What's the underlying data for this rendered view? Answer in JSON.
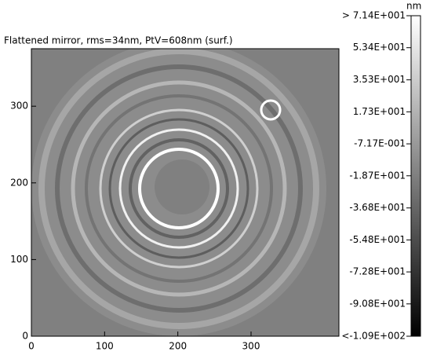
{
  "chart_data": {
    "type": "heatmap",
    "title": "Flattened mirror, rms=34nm, PtV=608nm (surf.)",
    "colorbar_unit": "nm",
    "xlim": [
      0,
      420
    ],
    "xticks": [
      0,
      100,
      200,
      300
    ],
    "ylim": [
      0,
      375
    ],
    "yticks": [
      0,
      100,
      200,
      300
    ],
    "colorbar_lim": [
      -109,
      71.4
    ],
    "colorbar_ticks": [
      {
        "value": 71.4,
        "label": "> 7.14E+001"
      },
      {
        "value": 53.4,
        "label": "5.34E+001"
      },
      {
        "value": 35.3,
        "label": "3.53E+001"
      },
      {
        "value": 17.3,
        "label": "1.73E+001"
      },
      {
        "value": -0.717,
        "label": "-7.17E-001"
      },
      {
        "value": -18.7,
        "label": "-1.87E+001"
      },
      {
        "value": -36.8,
        "label": "-3.68E+001"
      },
      {
        "value": -54.8,
        "label": "-5.48E+001"
      },
      {
        "value": -72.8,
        "label": "-7.28E+001"
      },
      {
        "value": -90.8,
        "label": "-9.08E+001"
      },
      {
        "value": -109,
        "label": "<-1.09E+002"
      }
    ]
  }
}
